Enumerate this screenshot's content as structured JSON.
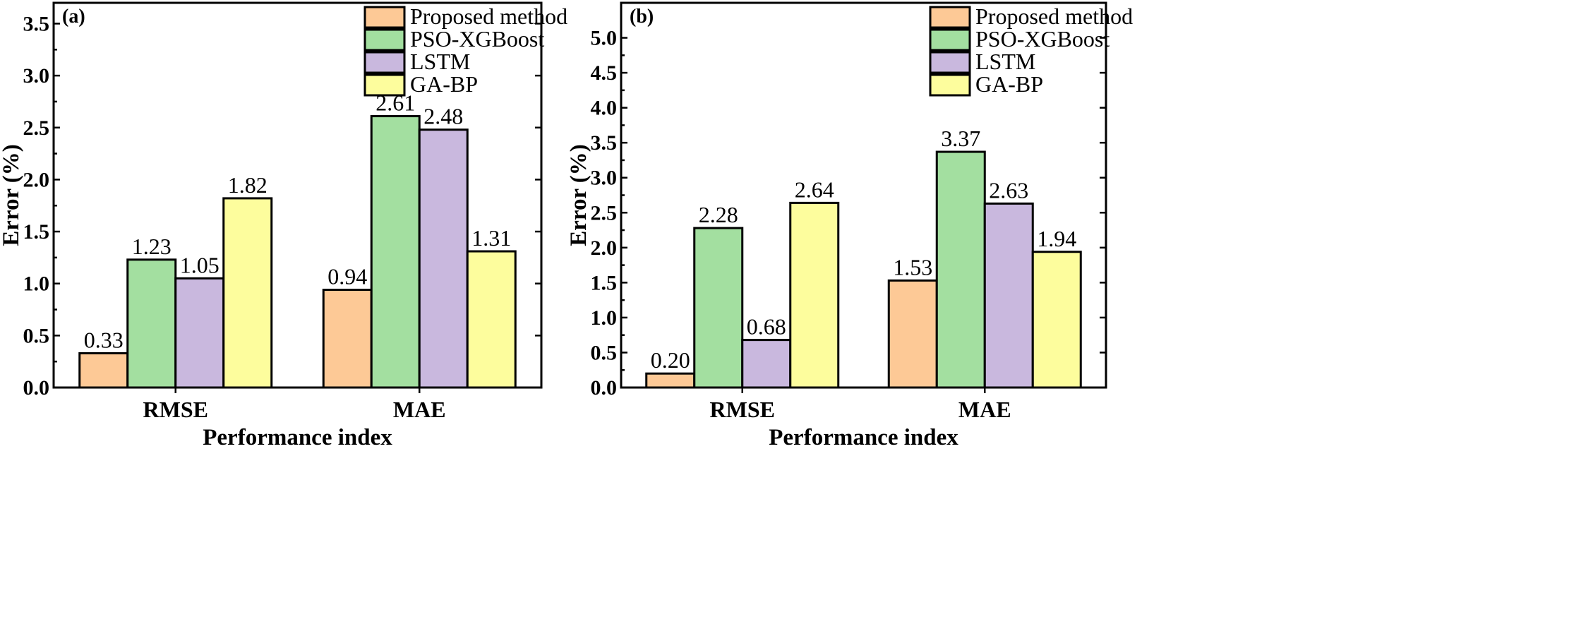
{
  "chart_data": [
    {
      "type": "bar",
      "panel_label": "(a)",
      "categories": [
        "RMSE",
        "MAE"
      ],
      "series": [
        {
          "name": "Proposed method",
          "values": [
            0.33,
            0.94
          ],
          "color": "#FDC996"
        },
        {
          "name": "PSO-XGBoost",
          "values": [
            1.23,
            2.61
          ],
          "color": "#A3DFA0"
        },
        {
          "name": "LSTM",
          "values": [
            1.05,
            2.48
          ],
          "color": "#C9B8DE"
        },
        {
          "name": "GA-BP",
          "values": [
            1.82,
            1.31
          ],
          "color": "#FDFD9D"
        }
      ],
      "value_labels": [
        [
          "0.33",
          "0.94"
        ],
        [
          "1.23",
          "2.61"
        ],
        [
          "1.05",
          "2.48"
        ],
        [
          "1.82",
          "1.31"
        ]
      ],
      "title": "",
      "xlabel": "Performance index",
      "ylabel": "Error (%)",
      "ylim": [
        0,
        3.7
      ],
      "yticks": [
        0.0,
        0.5,
        1.0,
        1.5,
        2.0,
        2.5,
        3.0,
        3.5
      ],
      "ytick_labels": [
        "0.0",
        "0.5",
        "1.0",
        "1.5",
        "2.0",
        "2.5",
        "3.0",
        "3.5"
      ],
      "legend_position": "top-right",
      "grid": false
    },
    {
      "type": "bar",
      "panel_label": "(b)",
      "categories": [
        "RMSE",
        "MAE"
      ],
      "series": [
        {
          "name": "Proposed method",
          "values": [
            0.2,
            1.53
          ],
          "color": "#FDC996"
        },
        {
          "name": "PSO-XGBoost",
          "values": [
            2.28,
            3.37
          ],
          "color": "#A3DFA0"
        },
        {
          "name": "LSTM",
          "values": [
            0.68,
            2.63
          ],
          "color": "#C9B8DE"
        },
        {
          "name": "GA-BP",
          "values": [
            2.64,
            1.94
          ],
          "color": "#FDFD9D"
        }
      ],
      "value_labels": [
        [
          "0.20",
          "1.53"
        ],
        [
          "2.28",
          "3.37"
        ],
        [
          "0.68",
          "2.63"
        ],
        [
          "2.64",
          "1.94"
        ]
      ],
      "title": "",
      "xlabel": "Performance index",
      "ylabel": "Error (%)",
      "ylim": [
        0,
        5.5
      ],
      "yticks": [
        0.0,
        0.5,
        1.0,
        1.5,
        2.0,
        2.5,
        3.0,
        3.5,
        4.0,
        4.5,
        5.0
      ],
      "ytick_labels": [
        "0.0",
        "0.5",
        "1.0",
        "1.5",
        "2.0",
        "2.5",
        "3.0",
        "3.5",
        "4.0",
        "4.5",
        "5.0"
      ],
      "legend_position": "top-right",
      "grid": false
    }
  ]
}
